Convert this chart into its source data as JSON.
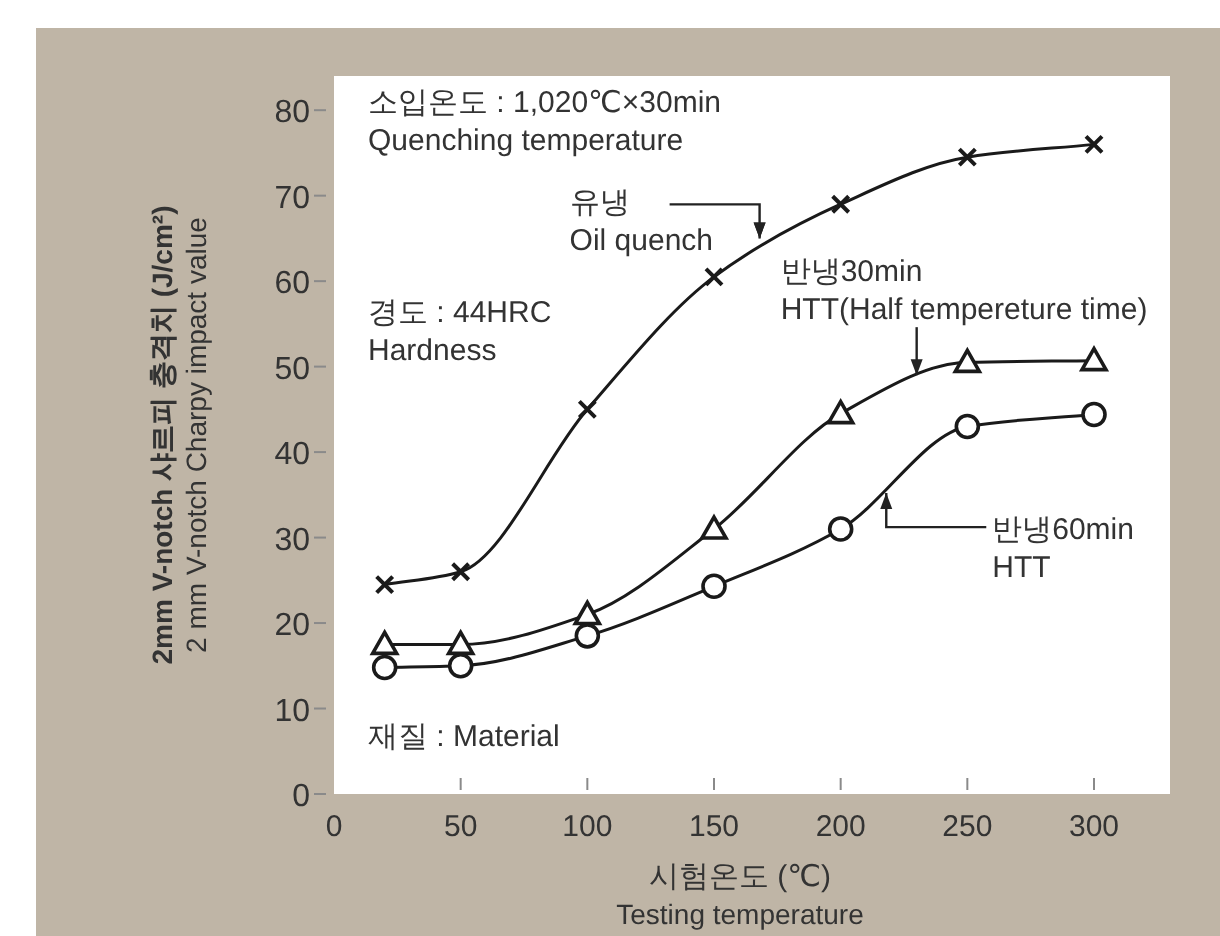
{
  "chart_data": {
    "type": "line",
    "xlabel": "시험온도 (℃)\nTesting temperature",
    "ylabel": "2mm V-notch 샤르피 충격치 (J/cm²)\n2 mm V-notch Charpy impact value",
    "x": [
      20,
      50,
      100,
      150,
      200,
      250,
      300
    ],
    "xlim": [
      0,
      330
    ],
    "xticks": [
      0,
      50,
      100,
      150,
      200,
      250,
      300
    ],
    "ylim": [
      0,
      84
    ],
    "yticks": [
      0,
      10,
      20,
      30,
      40,
      50,
      60,
      70,
      80
    ],
    "grid": false,
    "line_style": "solid",
    "series": [
      {
        "color": "#1a1a1a",
        "marker": "cross",
        "values": [
          24.5,
          26,
          45,
          60.5,
          69,
          74.5,
          76
        ]
      },
      {
        "color": "#1a1a1a",
        "marker": "triangle",
        "values": [
          17.5,
          17.5,
          21,
          31,
          44.5,
          50.5,
          50.7
        ]
      },
      {
        "color": "#1a1a1a",
        "marker": "circle",
        "values": [
          14.8,
          15,
          18.5,
          24.3,
          31,
          43,
          44.4
        ]
      }
    ],
    "annotations": [
      "소입온도 : 1,020℃×30min\nQuenching temperature",
      "경도 : 44HRC\nHardness",
      "재질 : Material",
      {
        "text": "유냉\nOil quench",
        "x": 168,
        "y": 65
      },
      {
        "text": "반냉30min\nHTT(Half tempereture time)",
        "x": 230,
        "y": 49
      },
      {
        "text": "반냉60min\nHTT",
        "x": 218,
        "y": 35.2
      }
    ]
  }
}
